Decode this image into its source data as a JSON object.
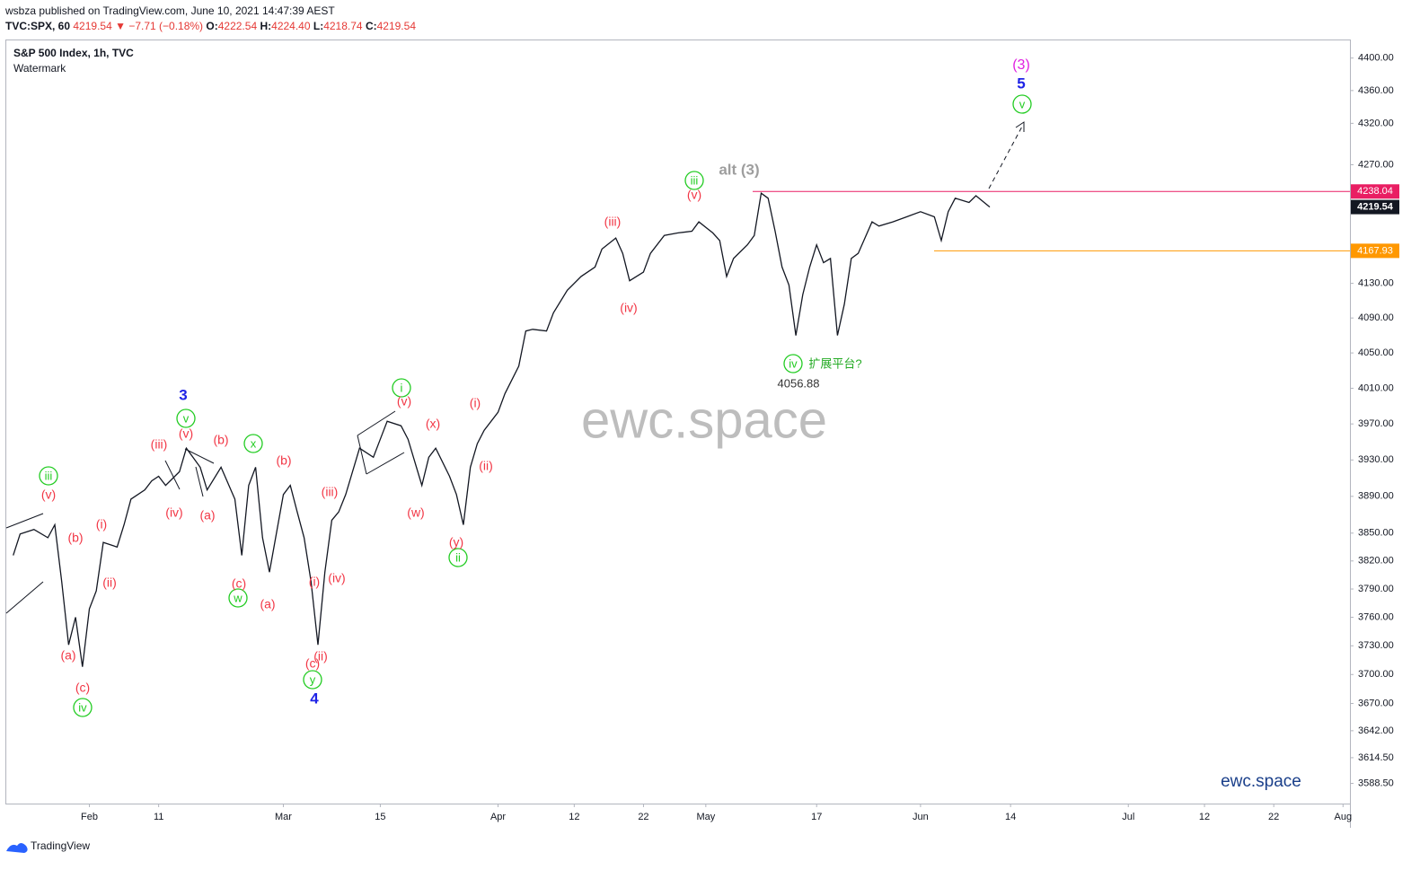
{
  "header": {
    "published": "wsbza published on TradingView.com, June 10, 2021 14:47:39 AEST",
    "symbol": "TVC:SPX, 60",
    "price": "4219.54",
    "change": "▼ −7.71 (−0.18%)",
    "ohlc": [
      {
        "label": "O:",
        "value": "4222.54"
      },
      {
        "label": "H:",
        "value": "4224.40"
      },
      {
        "label": "L:",
        "value": "4218.74"
      },
      {
        "label": "C:",
        "value": "4219.54"
      }
    ]
  },
  "footer": {
    "brand": "TradingView"
  },
  "chart_data": {
    "type": "line",
    "title": "S&P 500 Index, 1h, TVC",
    "subtitle": "Watermark",
    "watermark": "ewc.space",
    "signature": "ewc.space",
    "log_scale": true,
    "color": "#131722",
    "x": [
      "Jan 21",
      "Jan 22",
      "Jan 24",
      "Jan 26",
      "Jan 27",
      "Jan 28",
      "Jan 29",
      "Jan 30",
      "Jan 31",
      "Feb 1",
      "Feb 2",
      "Feb 3",
      "Feb 5",
      "Feb 6",
      "Feb 7",
      "Feb 9",
      "Feb 10",
      "Feb 11",
      "Feb 12",
      "Feb 14",
      "Feb 15",
      "Feb 17",
      "Feb 18",
      "Feb 20",
      "Feb 22",
      "Feb 23",
      "Feb 24",
      "Feb 25",
      "Feb 26",
      "Feb 27",
      "Mar 1",
      "Mar 2",
      "Mar 3",
      "Mar 4",
      "Mar 5",
      "Mar 6",
      "Mar 7",
      "Mar 8",
      "Mar 9",
      "Mar 10",
      "Mar 12",
      "Mar 14",
      "Mar 15",
      "Mar 16",
      "Mar 18",
      "Mar 19",
      "Mar 21",
      "Mar 22",
      "Mar 23",
      "Mar 25",
      "Mar 26",
      "Mar 27",
      "Mar 28",
      "Mar 29",
      "Mar 30",
      "Apr 1",
      "Apr 2",
      "Apr 4",
      "Apr 5",
      "Apr 6",
      "Apr 8",
      "Apr 9",
      "Apr 11",
      "Apr 13",
      "Apr 15",
      "Apr 16",
      "Apr 18",
      "Apr 19",
      "Apr 20",
      "Apr 22",
      "Apr 23",
      "Apr 25",
      "Apr 27",
      "Apr 29",
      "Apr 30",
      "May 2",
      "May 3",
      "May 4",
      "May 5",
      "May 7",
      "May 8",
      "May 9",
      "May 10",
      "May 11",
      "May 12",
      "May 13",
      "May 14",
      "May 15",
      "May 16",
      "May 17",
      "May 18",
      "May 19",
      "May 20",
      "May 21",
      "May 22",
      "May 23",
      "May 25",
      "May 26",
      "May 28",
      "May 30",
      "Jun 1",
      "Jun 3",
      "Jun 4",
      "Jun 5",
      "Jun 6",
      "Jun 8",
      "Jun 9",
      "Jun 11"
    ],
    "values": [
      3826,
      3849,
      3854,
      3845,
      3859,
      3798,
      3731,
      3760,
      3708,
      3769,
      3788,
      3840,
      3835,
      3859,
      3887,
      3897,
      3907,
      3912,
      3902,
      3917,
      3943,
      3922,
      3897,
      3922,
      3887,
      3826,
      3902,
      3922,
      3845,
      3808,
      3892,
      3902,
      3873,
      3845,
      3798,
      3731,
      3808,
      3864,
      3873,
      3892,
      3943,
      3933,
      3953,
      3973,
      3968,
      3953,
      3902,
      3933,
      3943,
      3912,
      3892,
      3859,
      3922,
      3948,
      3963,
      3983,
      4004,
      4035,
      4075,
      4077,
      4075,
      4096,
      4122,
      4138,
      4149,
      4170,
      4183,
      4165,
      4133,
      4143,
      4165,
      4186,
      4189,
      4191,
      4202,
      4189,
      4180,
      4138,
      4159,
      4175,
      4186,
      4236,
      4230,
      4191,
      4149,
      4128,
      4070,
      4117,
      4149,
      4175,
      4154,
      4159,
      4070,
      4106,
      4159,
      4165,
      4202,
      4197,
      4202,
      4208,
      4214,
      4208,
      4180,
      4214,
      4230,
      4225,
      4233,
      4219.54
    ],
    "xlim": [
      "Jan 20",
      "Aug 2"
    ],
    "xticks": [
      {
        "value": "Feb 1",
        "label": "Feb"
      },
      {
        "value": "Feb 11",
        "label": "11"
      },
      {
        "value": "Mar 1",
        "label": "Mar"
      },
      {
        "value": "Mar 15",
        "label": "15"
      },
      {
        "value": "Apr 1",
        "label": "Apr"
      },
      {
        "value": "Apr 12",
        "label": "12"
      },
      {
        "value": "Apr 22",
        "label": "22"
      },
      {
        "value": "May 1",
        "label": "May"
      },
      {
        "value": "May 17",
        "label": "17"
      },
      {
        "value": "Jun 1",
        "label": "Jun"
      },
      {
        "value": "Jun 14",
        "label": "14"
      },
      {
        "value": "Jul 1",
        "label": "Jul"
      },
      {
        "value": "Jul 12",
        "label": "12"
      },
      {
        "value": "Jul 22",
        "label": "22"
      },
      {
        "value": "Aug 1",
        "label": "Aug"
      }
    ],
    "ylim": [
      3570,
      4423
    ],
    "yticks": [
      {
        "value": 4400,
        "label": "4400.00"
      },
      {
        "value": 4360,
        "label": "4360.00"
      },
      {
        "value": 4320,
        "label": "4320.00"
      },
      {
        "value": 4270,
        "label": "4270.00"
      },
      {
        "value": 4130,
        "label": "4130.00"
      },
      {
        "value": 4090,
        "label": "4090.00"
      },
      {
        "value": 4050,
        "label": "4050.00"
      },
      {
        "value": 4010,
        "label": "4010.00"
      },
      {
        "value": 3970,
        "label": "3970.00"
      },
      {
        "value": 3930,
        "label": "3930.00"
      },
      {
        "value": 3890,
        "label": "3890.00"
      },
      {
        "value": 3850,
        "label": "3850.00"
      },
      {
        "value": 3820,
        "label": "3820.00"
      },
      {
        "value": 3790,
        "label": "3790.00"
      },
      {
        "value": 3760,
        "label": "3760.00"
      },
      {
        "value": 3730,
        "label": "3730.00"
      },
      {
        "value": 3700,
        "label": "3700.00"
      },
      {
        "value": 3670,
        "label": "3670.00"
      },
      {
        "value": 3642,
        "label": "3642.00"
      },
      {
        "value": 3614.5,
        "label": "3614.50"
      },
      {
        "value": 3588.5,
        "label": "3588.50"
      }
    ],
    "price_lines": [
      {
        "value": 4238.04,
        "color": "#e91e63"
      },
      {
        "value": 4167.93,
        "color": "#ff9800"
      }
    ],
    "last_price": 4219.54,
    "last_price_color": "#131722",
    "annotations": [
      {
        "text": "iii",
        "color": "#22cc22"
      },
      {
        "text": "iv",
        "color": "#22cc22"
      },
      {
        "text": "v",
        "color": "#22cc22"
      },
      {
        "text": "w",
        "color": "#22cc22"
      },
      {
        "text": "x",
        "color": "#22cc22"
      },
      {
        "text": "y",
        "color": "#22cc22"
      },
      {
        "text": "i",
        "color": "#22cc22"
      },
      {
        "text": "ii",
        "color": "#22cc22"
      },
      {
        "text": "iii",
        "color": "#22cc22"
      },
      {
        "text": "iv",
        "color": "#22cc22"
      },
      {
        "text": "v",
        "color": "#22cc22"
      },
      {
        "text": "(v)",
        "color": "#f23645"
      },
      {
        "text": "(b)",
        "color": "#f23645"
      },
      {
        "text": "(a)",
        "color": "#f23645"
      },
      {
        "text": "(c)",
        "color": "#f23645"
      },
      {
        "text": "(i)",
        "color": "#f23645"
      },
      {
        "text": "(ii)",
        "color": "#f23645"
      },
      {
        "text": "(iii)",
        "color": "#f23645"
      },
      {
        "text": "(iv)",
        "color": "#f23645"
      },
      {
        "text": "(v)",
        "color": "#f23645"
      },
      {
        "text": "(b)",
        "color": "#f23645"
      },
      {
        "text": "(a)",
        "color": "#f23645"
      },
      {
        "text": "(c)",
        "color": "#f23645"
      },
      {
        "text": "(b)",
        "color": "#f23645"
      },
      {
        "text": "(a)",
        "color": "#f23645"
      },
      {
        "text": "(iii)",
        "color": "#f23645"
      },
      {
        "text": "(iv)",
        "color": "#f23645"
      },
      {
        "text": "(i)",
        "color": "#f23645"
      },
      {
        "text": "(c)",
        "color": "#f23645"
      },
      {
        "text": "(ii)",
        "color": "#f23645"
      },
      {
        "text": "(v)",
        "color": "#f23645"
      },
      {
        "text": "(x)",
        "color": "#f23645"
      },
      {
        "text": "(w)",
        "color": "#f23645"
      },
      {
        "text": "(i)",
        "color": "#f23645"
      },
      {
        "text": "(ii)",
        "color": "#f23645"
      },
      {
        "text": "(y)",
        "color": "#f23645"
      },
      {
        "text": "(iii)",
        "color": "#f23645"
      },
      {
        "text": "(iv)",
        "color": "#f23645"
      },
      {
        "text": "(v)",
        "color": "#f23645"
      },
      {
        "text": "3",
        "color": "#1e22e6"
      },
      {
        "text": "4",
        "color": "#1e22e6"
      },
      {
        "text": "5",
        "color": "#1e22e6"
      },
      {
        "text": "(3)",
        "color": "#e020e0"
      },
      {
        "text": "alt (3)",
        "color": "#9e9e9e"
      },
      {
        "text": "扩展平台?",
        "color": "#22aa22"
      },
      {
        "text": "4056.88",
        "color": "#333333"
      }
    ]
  }
}
